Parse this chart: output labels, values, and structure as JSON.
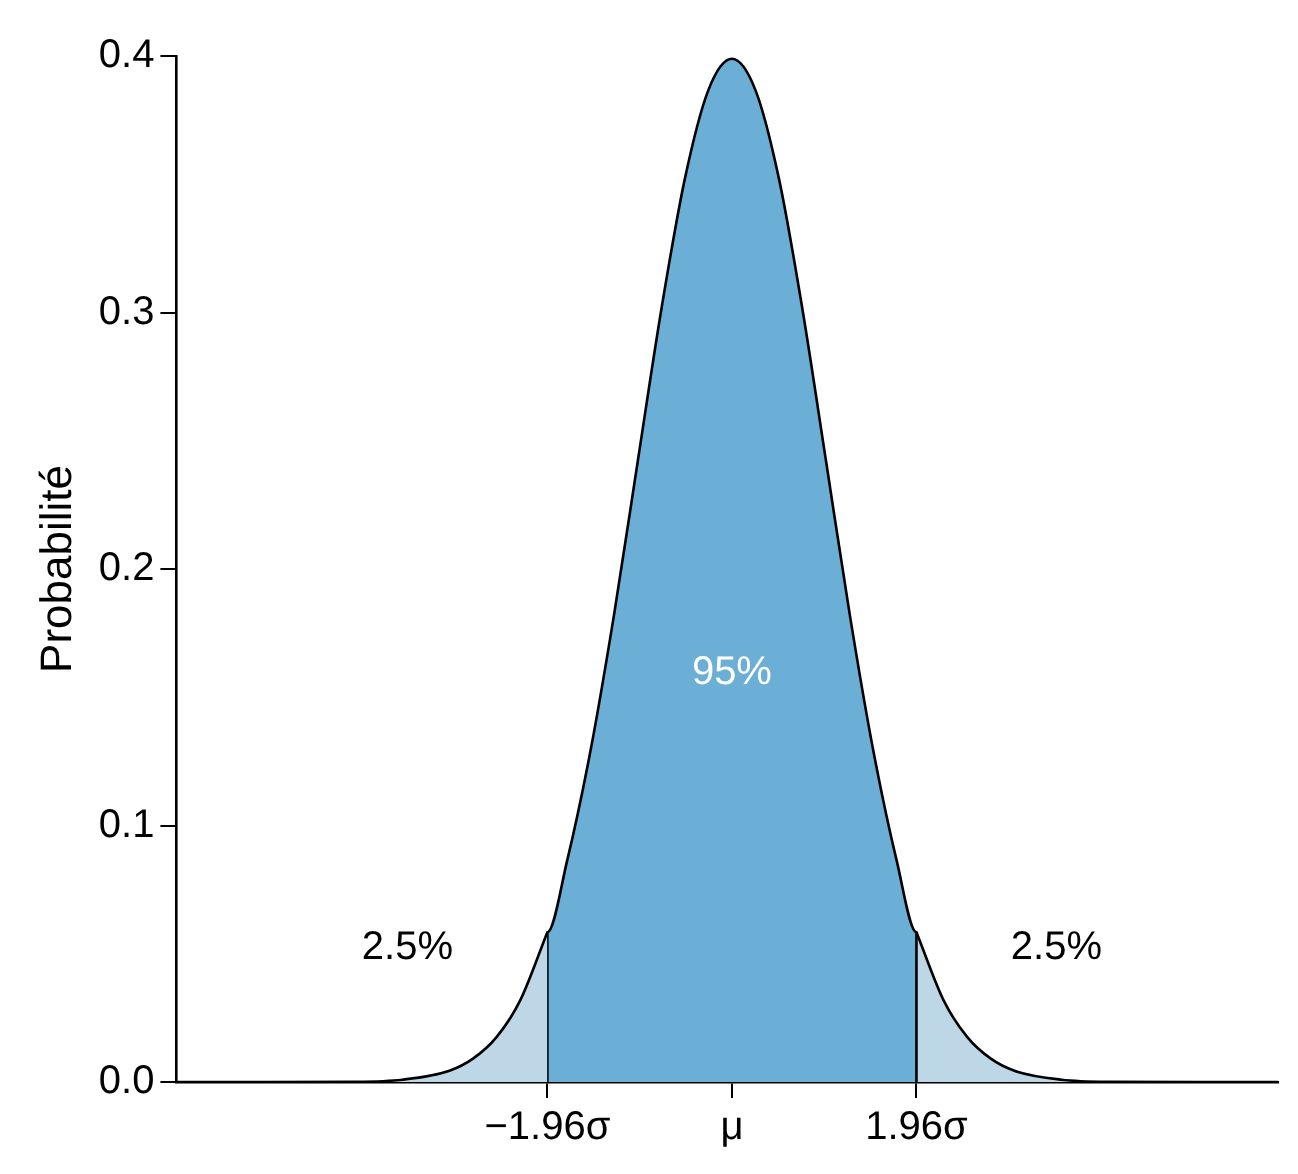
{
  "chart_data": {
    "type": "area",
    "ylabel": "Probabilité",
    "xlim": [
      -5.9,
      5.8
    ],
    "ylim": [
      0,
      0.4
    ],
    "xticks": [
      {
        "value": -1.96,
        "label": "−1.96σ"
      },
      {
        "value": 0,
        "label": "μ"
      },
      {
        "value": 1.96,
        "label": "1.96σ"
      }
    ],
    "yticks": [
      {
        "value": 0,
        "label": "0.0"
      },
      0.1,
      0.2,
      0.3,
      0.4
    ],
    "grid": false,
    "legend": false,
    "marker": "none",
    "series": [
      {
        "color": "#bdd7e7",
        "x": [
          -5.9,
          -5,
          -4,
          -3.5,
          -3,
          -2.75,
          -2.5,
          -2.25,
          -1.96
        ],
        "values": [
          0,
          0,
          0.0001,
          0.0009,
          0.0044,
          0.0091,
          0.0175,
          0.0317,
          0.0584
        ]
      },
      {
        "color": "#6baed6",
        "x": [
          -1.96,
          -1.96,
          -1.75,
          -1.5,
          -1.25,
          -1,
          -0.75,
          -0.5,
          -0.25,
          0,
          0.25,
          0.5,
          0.75,
          1,
          1.25,
          1.5,
          1.75,
          1.96,
          1.96
        ],
        "values": [
          0,
          0.0584,
          0.0863,
          0.1295,
          0.1826,
          0.242,
          0.3011,
          0.3521,
          0.3867,
          0.3989,
          0.3867,
          0.3521,
          0.3011,
          0.242,
          0.1826,
          0.1295,
          0.0863,
          0.0584,
          0
        ]
      },
      {
        "color": "#bdd7e7",
        "x": [
          1.96,
          2.25,
          2.5,
          2.75,
          3,
          3.5,
          4,
          5,
          5.8
        ],
        "values": [
          0.0584,
          0.0317,
          0.0175,
          0.0091,
          0.0044,
          0.0009,
          0.0001,
          0,
          0
        ]
      }
    ],
    "annotations": [
      "2.5%",
      "95%",
      "2.5%"
    ]
  }
}
